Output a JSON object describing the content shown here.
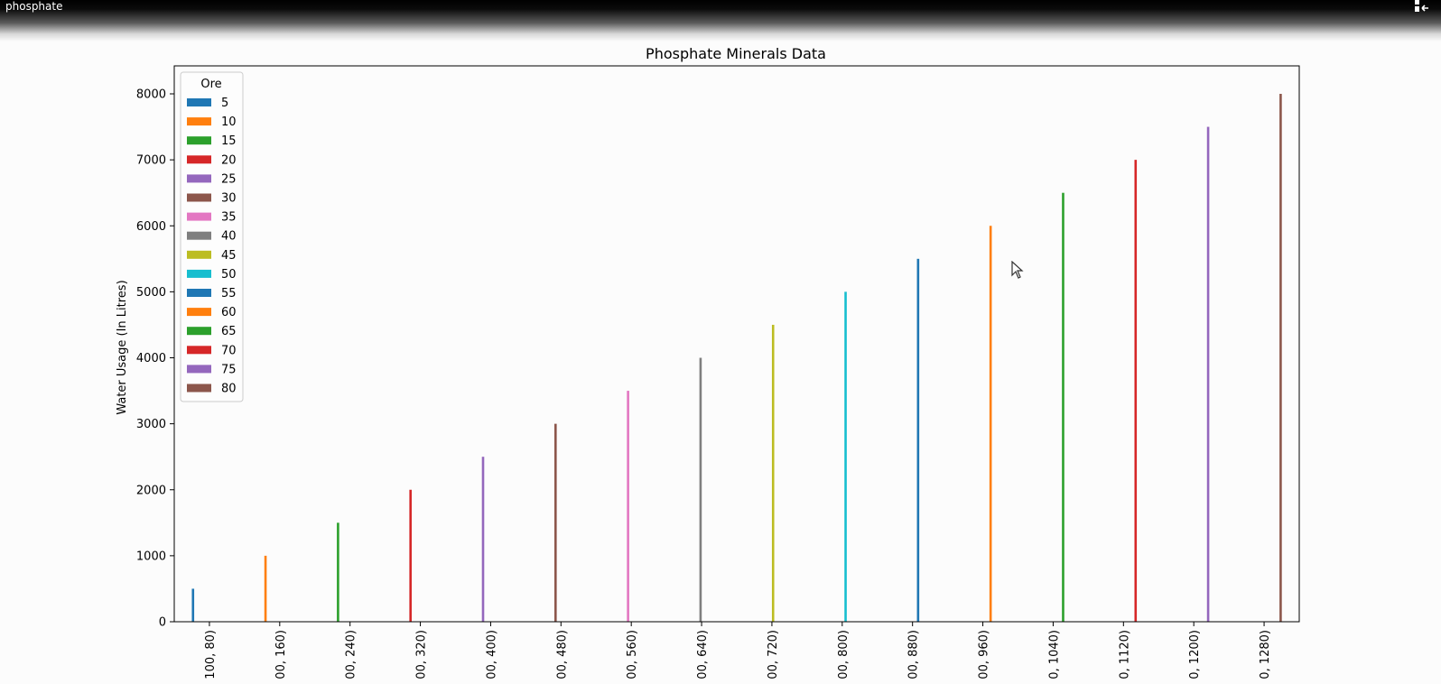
{
  "window": {
    "title": "phosphate"
  },
  "icons": {
    "window_control": "restore-icon",
    "cursor": "mouse-pointer-icon"
  },
  "chart_data": {
    "type": "bar",
    "title": "Phosphate Minerals Data",
    "xlabel": "",
    "ylabel": "Water Usage (In Litres)",
    "ylim": [
      0,
      8000
    ],
    "yticks": [
      0,
      1000,
      2000,
      3000,
      4000,
      5000,
      6000,
      7000,
      8000
    ],
    "categories": [
      "100, 80)",
      "00, 160)",
      "00, 240)",
      "00, 320)",
      "00, 400)",
      "00, 480)",
      "00, 560)",
      "00, 640)",
      "00, 720)",
      "00, 800)",
      "00, 880)",
      "00, 960)",
      "0, 1040)",
      "0, 1120)",
      "0, 1200)",
      "0, 1280)"
    ],
    "legend": {
      "title": "Ore",
      "position": "top-left"
    },
    "grid": false,
    "series": [
      {
        "name": "5",
        "color": "#1f77b4",
        "values": [
          500,
          0,
          0,
          0,
          0,
          0,
          0,
          0,
          0,
          0,
          0,
          0,
          0,
          0,
          0,
          0
        ]
      },
      {
        "name": "10",
        "color": "#ff7f0e",
        "values": [
          0,
          1000,
          0,
          0,
          0,
          0,
          0,
          0,
          0,
          0,
          0,
          0,
          0,
          0,
          0,
          0
        ]
      },
      {
        "name": "15",
        "color": "#2ca02c",
        "values": [
          0,
          0,
          1500,
          0,
          0,
          0,
          0,
          0,
          0,
          0,
          0,
          0,
          0,
          0,
          0,
          0
        ]
      },
      {
        "name": "20",
        "color": "#d62728",
        "values": [
          0,
          0,
          0,
          2000,
          0,
          0,
          0,
          0,
          0,
          0,
          0,
          0,
          0,
          0,
          0,
          0
        ]
      },
      {
        "name": "25",
        "color": "#9467bd",
        "values": [
          0,
          0,
          0,
          0,
          2500,
          0,
          0,
          0,
          0,
          0,
          0,
          0,
          0,
          0,
          0,
          0
        ]
      },
      {
        "name": "30",
        "color": "#8c564b",
        "values": [
          0,
          0,
          0,
          0,
          0,
          3000,
          0,
          0,
          0,
          0,
          0,
          0,
          0,
          0,
          0,
          0
        ]
      },
      {
        "name": "35",
        "color": "#e377c2",
        "values": [
          0,
          0,
          0,
          0,
          0,
          0,
          3500,
          0,
          0,
          0,
          0,
          0,
          0,
          0,
          0,
          0
        ]
      },
      {
        "name": "40",
        "color": "#7f7f7f",
        "values": [
          0,
          0,
          0,
          0,
          0,
          0,
          0,
          4000,
          0,
          0,
          0,
          0,
          0,
          0,
          0,
          0
        ]
      },
      {
        "name": "45",
        "color": "#bcbd22",
        "values": [
          0,
          0,
          0,
          0,
          0,
          0,
          0,
          0,
          4500,
          0,
          0,
          0,
          0,
          0,
          0,
          0
        ]
      },
      {
        "name": "50",
        "color": "#17becf",
        "values": [
          0,
          0,
          0,
          0,
          0,
          0,
          0,
          0,
          0,
          5000,
          0,
          0,
          0,
          0,
          0,
          0
        ]
      },
      {
        "name": "55",
        "color": "#1f77b4",
        "values": [
          0,
          0,
          0,
          0,
          0,
          0,
          0,
          0,
          0,
          0,
          5500,
          0,
          0,
          0,
          0,
          0
        ]
      },
      {
        "name": "60",
        "color": "#ff7f0e",
        "values": [
          0,
          0,
          0,
          0,
          0,
          0,
          0,
          0,
          0,
          0,
          0,
          6000,
          0,
          0,
          0,
          0
        ]
      },
      {
        "name": "65",
        "color": "#2ca02c",
        "values": [
          0,
          0,
          0,
          0,
          0,
          0,
          0,
          0,
          0,
          0,
          0,
          0,
          6500,
          0,
          0,
          0
        ]
      },
      {
        "name": "70",
        "color": "#d62728",
        "values": [
          0,
          0,
          0,
          0,
          0,
          0,
          0,
          0,
          0,
          0,
          0,
          0,
          0,
          7000,
          0,
          0
        ]
      },
      {
        "name": "75",
        "color": "#9467bd",
        "values": [
          0,
          0,
          0,
          0,
          0,
          0,
          0,
          0,
          0,
          0,
          0,
          0,
          0,
          0,
          7500,
          0
        ]
      },
      {
        "name": "80",
        "color": "#8c564b",
        "values": [
          0,
          0,
          0,
          0,
          0,
          0,
          0,
          0,
          0,
          0,
          0,
          0,
          0,
          0,
          0,
          8000
        ]
      }
    ]
  }
}
